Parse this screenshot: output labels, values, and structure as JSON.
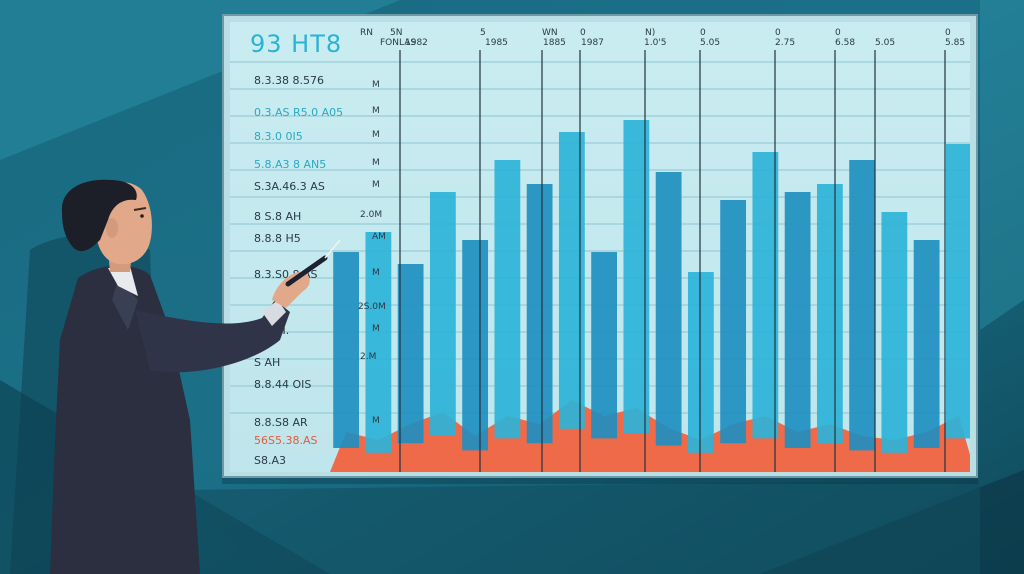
{
  "board": {
    "title": "93 HT8",
    "col_headers": [
      "RN",
      "5N",
      "FONLAS",
      "1982",
      "5",
      "1985",
      "WN",
      "1885",
      "0",
      "1987",
      "N)",
      "1.0'5",
      "0",
      "5.05",
      "0",
      "2.75",
      "0",
      "6.58",
      "5.05",
      "0",
      "5.85"
    ],
    "row_labels": [
      {
        "text": "8.3.38  8.576",
        "style": "dark"
      },
      {
        "text": "0.3.AS  R5.0 A05",
        "style": "cyan"
      },
      {
        "text": "8.3.0  0I5",
        "style": "cyan"
      },
      {
        "text": "5.8.A3  8 AN5",
        "style": "cyan"
      },
      {
        "text": "S.3A.46.3  AS",
        "style": "dark"
      },
      {
        "text": "8  S.8  AH",
        "style": "dark"
      },
      {
        "text": "8.8.8  H5",
        "style": "dark"
      },
      {
        "text": "8.3.S0  8.AS",
        "style": "dark"
      },
      {
        "text": "8.3  AI.",
        "style": "dark"
      },
      {
        "text": "S  AH",
        "style": "dark"
      },
      {
        "text": "8.8.44  OIS",
        "style": "dark"
      },
      {
        "text": "8.8.S8  AR",
        "style": "dark"
      },
      {
        "text": "56S5.38.AS",
        "style": "red"
      },
      {
        "text": "S8.A3",
        "style": "dark"
      }
    ],
    "row_values": [
      "M",
      "M",
      "M",
      "M",
      "M",
      "2.0M",
      "AM",
      "M",
      "2S.0M",
      "M",
      "2.M",
      "M"
    ]
  },
  "colors": {
    "bg_dark": "#0f4a5c",
    "bg_light": "#2a8ea4",
    "bar_blue": "#2cb3d8",
    "bar_blue_dark": "#1f8fc0",
    "bar_red": "#ef6a48",
    "suit": "#2b2f3f"
  },
  "chart_data": {
    "type": "bar",
    "series": [
      {
        "values": [
          55,
          60,
          52,
          70,
          58,
          78,
          72,
          85,
          55,
          88,
          75,
          50,
          68,
          80,
          70,
          72,
          78,
          65,
          58,
          82
        ]
      },
      {
        "values": [
          10,
          8,
          12,
          15,
          9,
          14,
          12,
          18,
          14,
          16,
          11,
          8,
          12,
          14,
          10,
          12,
          9,
          8,
          10,
          14
        ]
      }
    ]
  }
}
